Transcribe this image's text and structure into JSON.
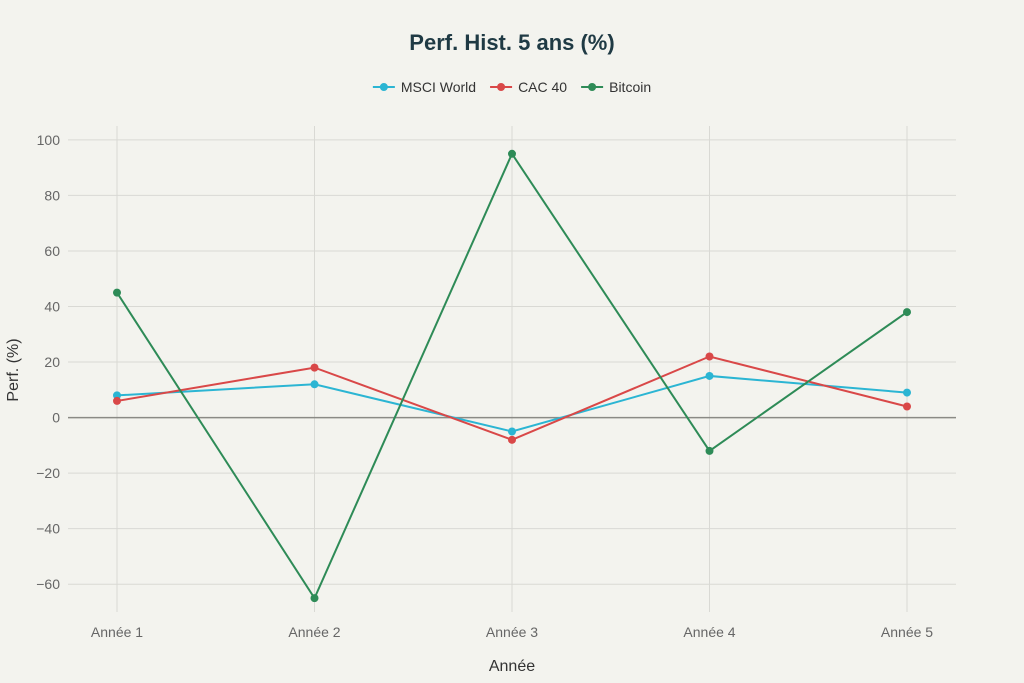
{
  "chart_data": {
    "type": "line",
    "title": "Perf. Hist. 5 ans (%)",
    "xlabel": "Année",
    "ylabel": "Perf. (%)",
    "categories": [
      "Année 1",
      "Année 2",
      "Année 3",
      "Année 4",
      "Année 5"
    ],
    "ylim": [
      -70,
      105
    ],
    "yticks": [
      100,
      80,
      60,
      40,
      20,
      0,
      -20,
      -40,
      -60
    ],
    "ytick_labels": [
      "100",
      "80",
      "60",
      "40",
      "20",
      "0",
      "−20",
      "−40",
      "−60"
    ],
    "grid": true,
    "legend_position": "top-center",
    "series": [
      {
        "name": "MSCI World",
        "color": "#2bb5d3",
        "values": [
          8,
          12,
          -5,
          15,
          9
        ]
      },
      {
        "name": "CAC 40",
        "color": "#d94848",
        "values": [
          6,
          18,
          -8,
          22,
          4
        ]
      },
      {
        "name": "Bitcoin",
        "color": "#2e8b57",
        "values": [
          45,
          -65,
          95,
          -12,
          38
        ]
      }
    ]
  }
}
